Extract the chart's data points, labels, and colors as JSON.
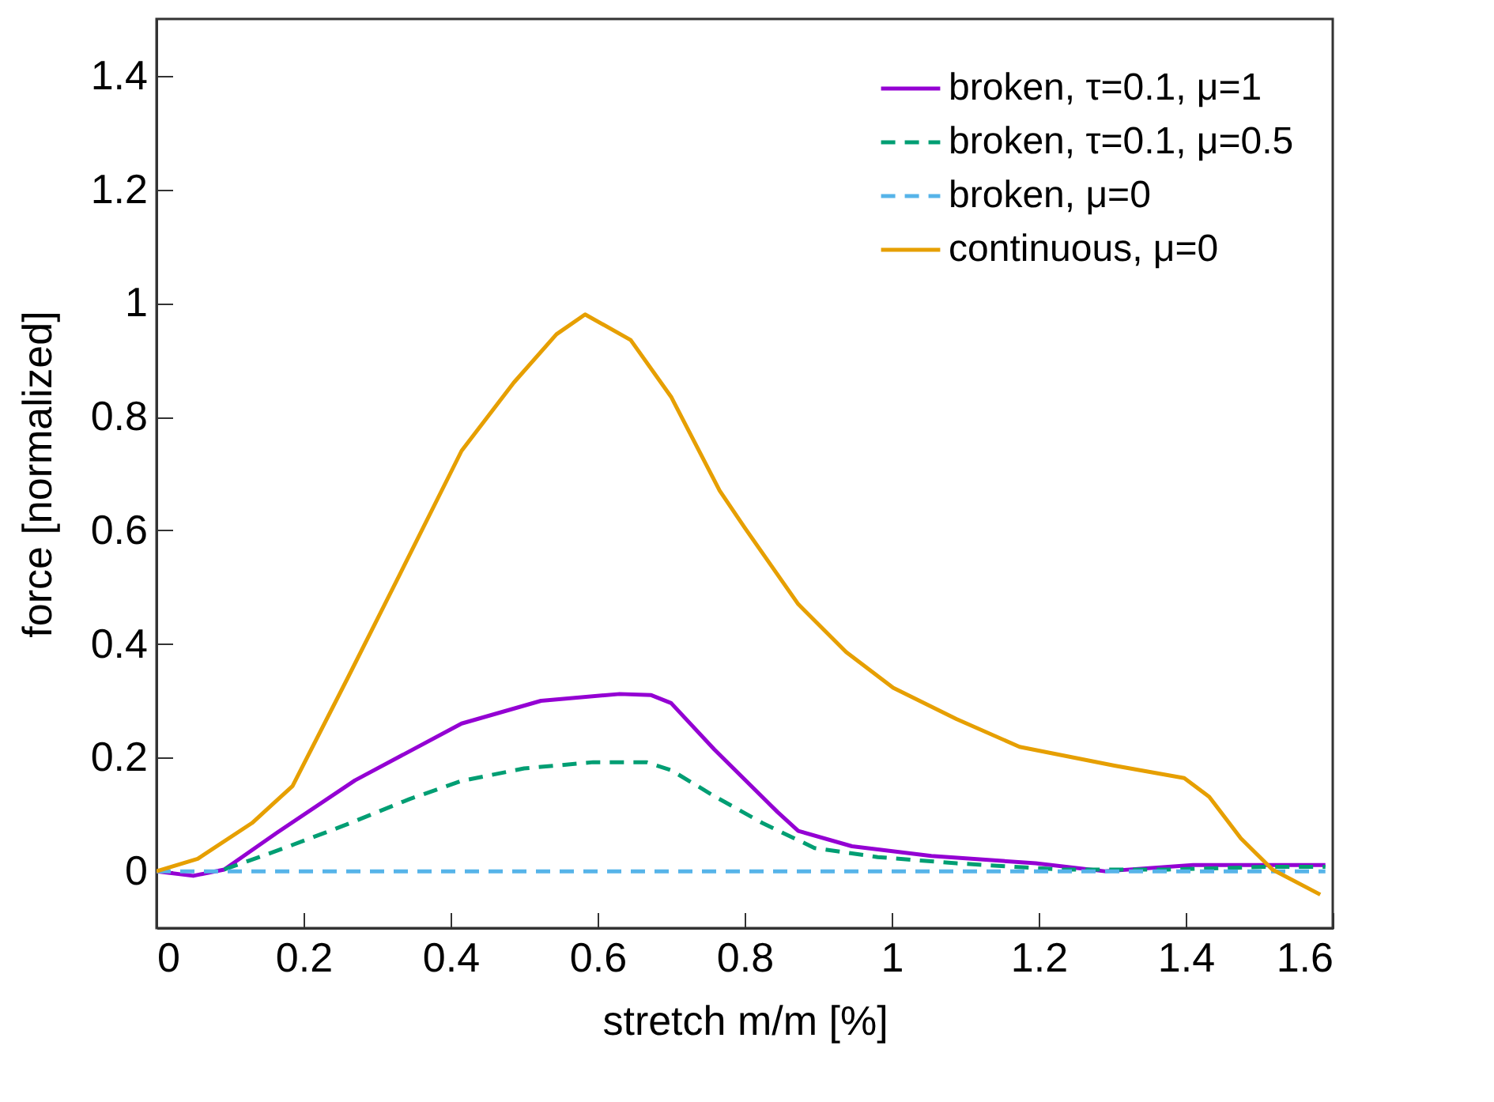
{
  "chart_data": {
    "type": "line",
    "xlabel": "stretch m/m [%]",
    "ylabel": "force [normalized]",
    "xlim": [
      0,
      1.6
    ],
    "ylim": [
      -0.1,
      1.5
    ],
    "xticks": [
      0,
      0.2,
      0.4,
      0.6,
      0.8,
      1,
      1.2,
      1.4,
      1.6
    ],
    "yticks": [
      0,
      0.2,
      0.4,
      0.6,
      0.8,
      1,
      1.2,
      1.4
    ],
    "grid": false,
    "legend": "top right",
    "series": [
      {
        "name": "broken, τ=0.1, μ=1",
        "color": "#9400d3",
        "line_style": "solid",
        "x": [
          0,
          0.05,
          0.092,
          0.164,
          0.27,
          0.415,
          0.523,
          0.63,
          0.673,
          0.7,
          0.759,
          0.845,
          0.873,
          0.946,
          1.054,
          1.196,
          1.29,
          1.41,
          1.59
        ],
        "values": [
          0,
          -0.008,
          0.003,
          0.068,
          0.16,
          0.26,
          0.3,
          0.312,
          0.31,
          0.296,
          0.214,
          0.104,
          0.071,
          0.044,
          0.027,
          0.014,
          0,
          0.011,
          0.011
        ]
      },
      {
        "name": "broken, τ=0.1, μ=0.5",
        "color": "#009e73",
        "line_style": "dashed",
        "x": [
          0.092,
          0.172,
          0.258,
          0.344,
          0.415,
          0.5,
          0.594,
          0.666,
          0.7,
          0.759,
          0.824,
          0.895,
          0.981,
          1.088,
          1.232,
          1.376,
          1.518,
          1.59
        ],
        "values": [
          0.003,
          0.04,
          0.082,
          0.127,
          0.159,
          0.181,
          0.192,
          0.192,
          0.178,
          0.132,
          0.085,
          0.041,
          0.025,
          0.014,
          0.003,
          0.003,
          0.008,
          0.008
        ]
      },
      {
        "name": "broken, μ=0",
        "color": "#56b4e9",
        "line_style": "dashed",
        "x": [
          0,
          1.59
        ],
        "values": [
          0,
          0
        ]
      },
      {
        "name": "continuous, μ=0",
        "color": "#e69f00",
        "line_style": "solid",
        "x": [
          0,
          0.056,
          0.13,
          0.185,
          0.26,
          0.33,
          0.415,
          0.486,
          0.544,
          0.583,
          0.645,
          0.7,
          0.766,
          0.8,
          0.873,
          0.938,
          1.002,
          1.088,
          1.174,
          1.303,
          1.398,
          1.432,
          1.475,
          1.518,
          1.583
        ],
        "values": [
          0,
          0.022,
          0.085,
          0.15,
          0.34,
          0.52,
          0.74,
          0.86,
          0.945,
          0.98,
          0.935,
          0.835,
          0.67,
          0.605,
          0.47,
          0.386,
          0.323,
          0.268,
          0.219,
          0.186,
          0.164,
          0.131,
          0.058,
          0.003,
          -0.041
        ]
      }
    ]
  }
}
